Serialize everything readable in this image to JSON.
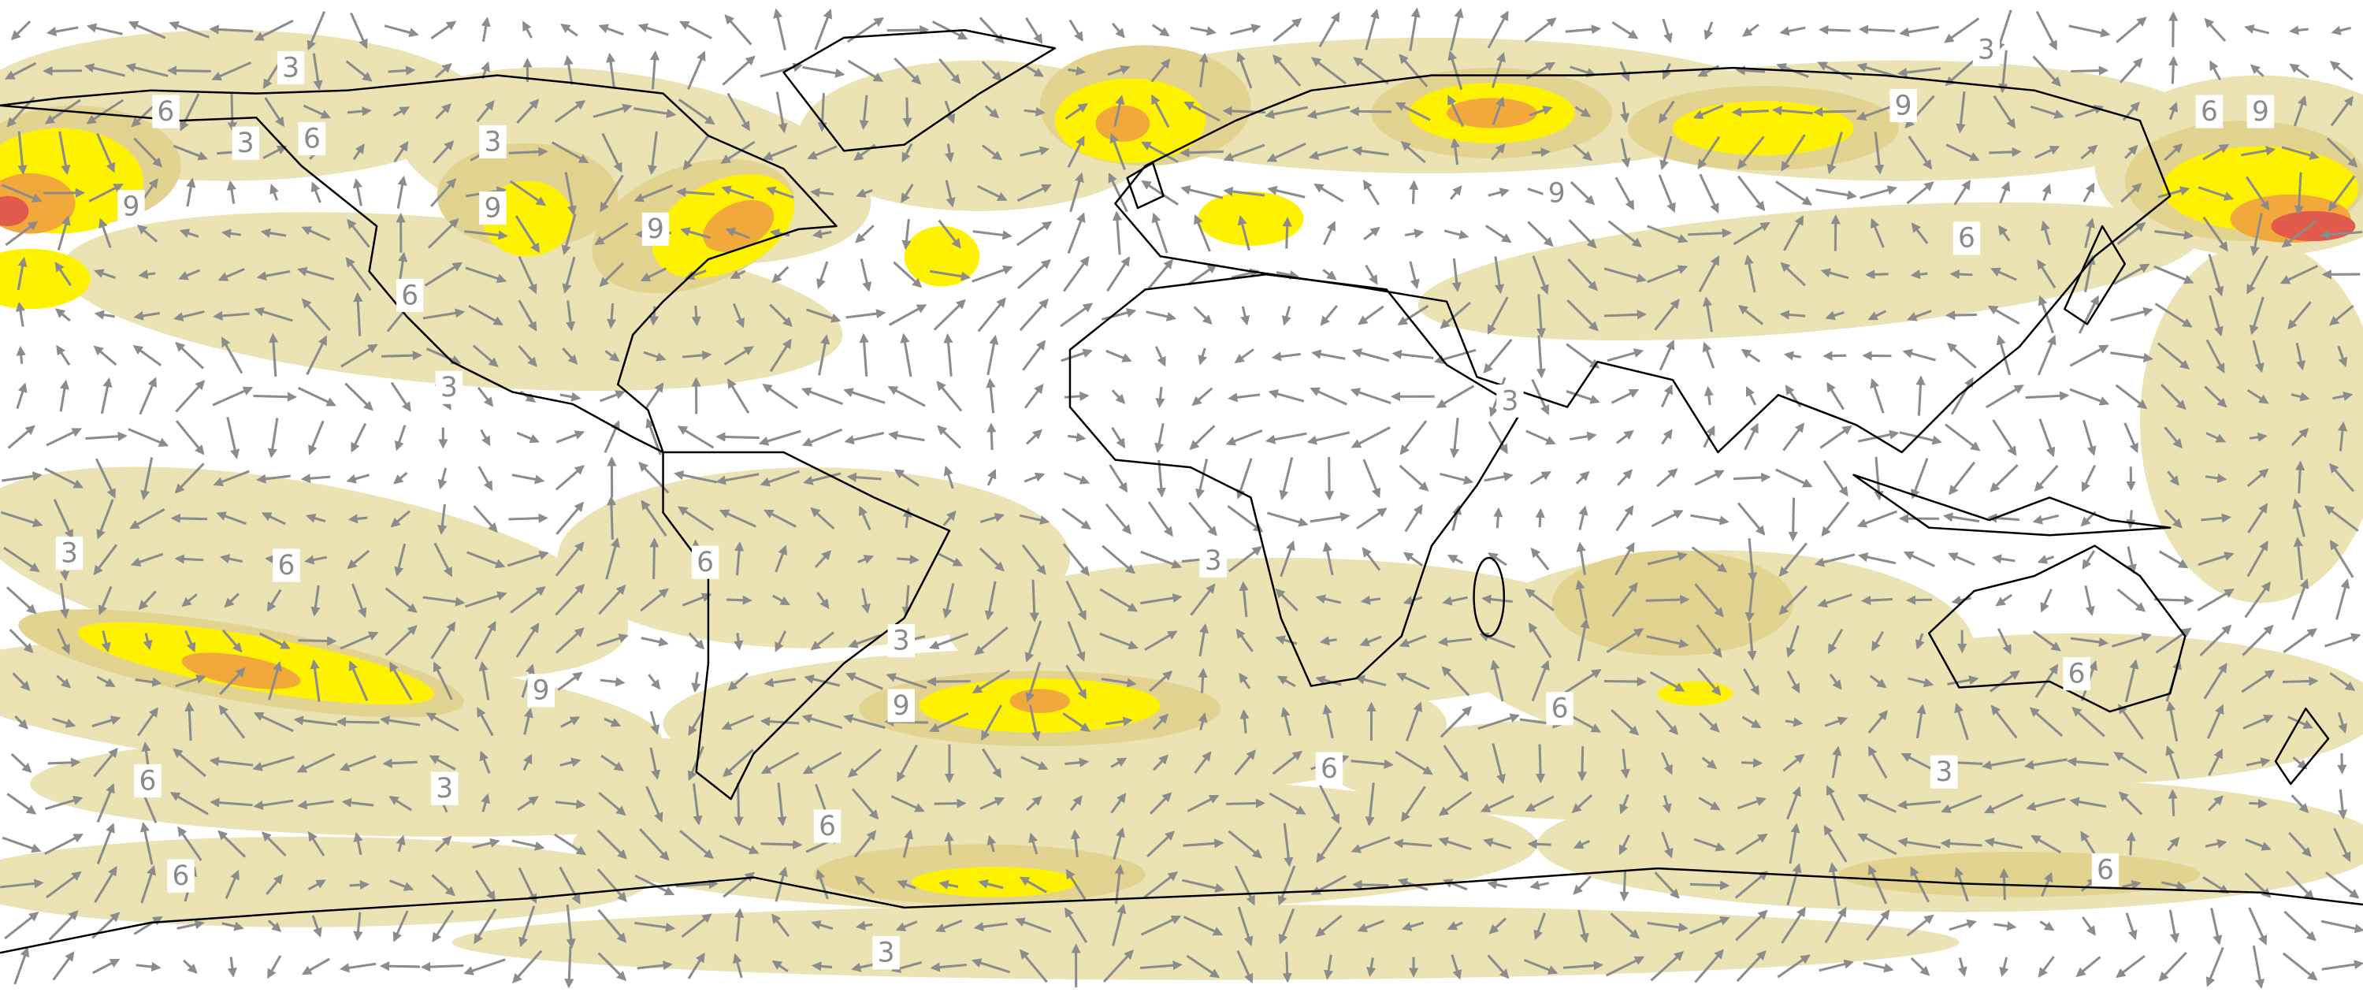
{
  "labels": [
    "3",
    "6",
    "3",
    "6",
    "3",
    "9",
    "9",
    "9",
    "6",
    "3",
    "3",
    "9",
    "6",
    "9",
    "9",
    "6",
    "3",
    "3",
    "6",
    "6",
    "3",
    "3",
    "9",
    "9",
    "6",
    "6",
    "6",
    "3",
    "6",
    "3",
    "6",
    "6",
    "6",
    "3"
  ]
}
